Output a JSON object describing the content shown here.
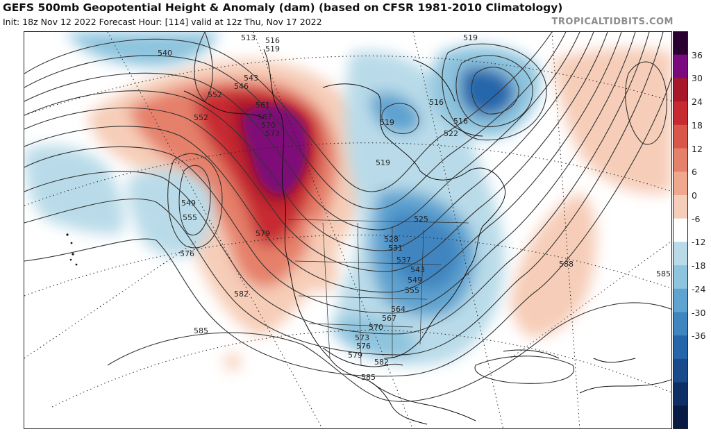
{
  "header": {
    "title": "GEFS 500mb Geopotential Height & Anomaly (dam) (based on CFSR 1981-2010 Climatology)",
    "subtitle": "Init: 18z Nov 12 2022   Forecast Hour: [114]   valid at 12z Thu, Nov 17 2022",
    "brand": "TROPICALTIDBITS.COM"
  },
  "colorbar": {
    "labels": [
      "36",
      "30",
      "24",
      "18",
      "12",
      "6",
      "0",
      "-6",
      "-12",
      "-18",
      "-24",
      "-30",
      "-36"
    ],
    "colors": [
      "#2a0030",
      "#7b0a7e",
      "#a6182a",
      "#c72a30",
      "#d9564a",
      "#e5806b",
      "#efa88e",
      "#f6cdb8",
      "#ffffff",
      "#b9dbe9",
      "#8ec4de",
      "#5fa3d0",
      "#3f85c0",
      "#2566ab",
      "#184a8c",
      "#0e2f66",
      "#081b44"
    ]
  },
  "contour_labels": [
    {
      "text": "513"
    },
    {
      "text": "516"
    },
    {
      "text": "519"
    },
    {
      "text": "540"
    },
    {
      "text": "543"
    },
    {
      "text": "546"
    },
    {
      "text": "552"
    },
    {
      "text": "552"
    },
    {
      "text": "561"
    },
    {
      "text": "567"
    },
    {
      "text": "570"
    },
    {
      "text": "573"
    },
    {
      "text": "549"
    },
    {
      "text": "555"
    },
    {
      "text": "576"
    },
    {
      "text": "579"
    },
    {
      "text": "582"
    },
    {
      "text": "585"
    },
    {
      "text": "519"
    },
    {
      "text": "516"
    },
    {
      "text": "516"
    },
    {
      "text": "522"
    },
    {
      "text": "519"
    },
    {
      "text": "519"
    },
    {
      "text": "525"
    },
    {
      "text": "528"
    },
    {
      "text": "531"
    },
    {
      "text": "537"
    },
    {
      "text": "543"
    },
    {
      "text": "549"
    },
    {
      "text": "555"
    },
    {
      "text": "564"
    },
    {
      "text": "567"
    },
    {
      "text": "570"
    },
    {
      "text": "573"
    },
    {
      "text": "576"
    },
    {
      "text": "579"
    },
    {
      "text": "582"
    },
    {
      "text": "585"
    },
    {
      "text": "588"
    },
    {
      "text": "585"
    }
  ]
}
